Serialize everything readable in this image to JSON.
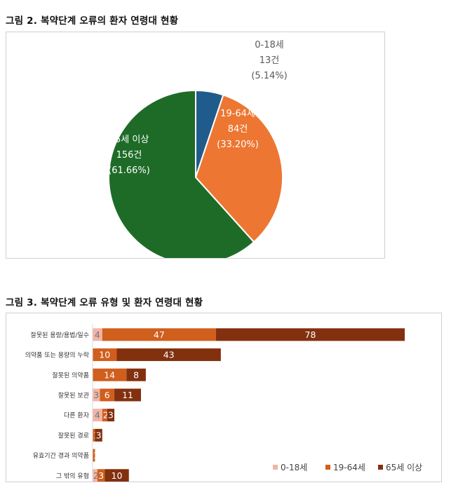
{
  "figure1": {
    "title": "그림 2. 복약단계 오류의 환자 연령대 현황",
    "chart_data": {
      "type": "pie",
      "slices": [
        {
          "name": "0-18세",
          "count": "13건",
          "pct": "(5.14%)",
          "value": 13,
          "color": "#1f5c8b"
        },
        {
          "name": "19-64세",
          "count": "84건",
          "pct": "(33.20%)",
          "value": 84,
          "color": "#ed7632"
        },
        {
          "name": "65세 이상",
          "count": "156건",
          "pct": "(61.66%)",
          "value": 156,
          "color": "#1e6b28"
        }
      ]
    }
  },
  "figure2": {
    "title": "그림 3. 복약단계 오류 유형 및 환자 연령대 현황",
    "chart_data": {
      "type": "bar",
      "stacked": true,
      "orientation": "horizontal",
      "categories": [
        "잘못된 용량/용법/일수",
        "의약품 또는 용량의 누락",
        "잘못된 의약품",
        "잘못된 보관",
        "다른 환자",
        "잘못된 경로",
        "유효기간 경과 의약품",
        "그 밖의 유형"
      ],
      "series": [
        {
          "name": "0-18세",
          "color": "#f2b4a6",
          "values": [
            4,
            0,
            0,
            3,
            4,
            0,
            0,
            2
          ]
        },
        {
          "name": "19-64세",
          "color": "#d05e1d",
          "values": [
            47,
            10,
            14,
            6,
            2,
            1,
            1,
            3
          ]
        },
        {
          "name": "65세 이상",
          "color": "#83300f",
          "values": [
            78,
            43,
            8,
            11,
            3,
            3,
            0,
            10
          ]
        }
      ],
      "legend_position": "bottom-right"
    }
  }
}
